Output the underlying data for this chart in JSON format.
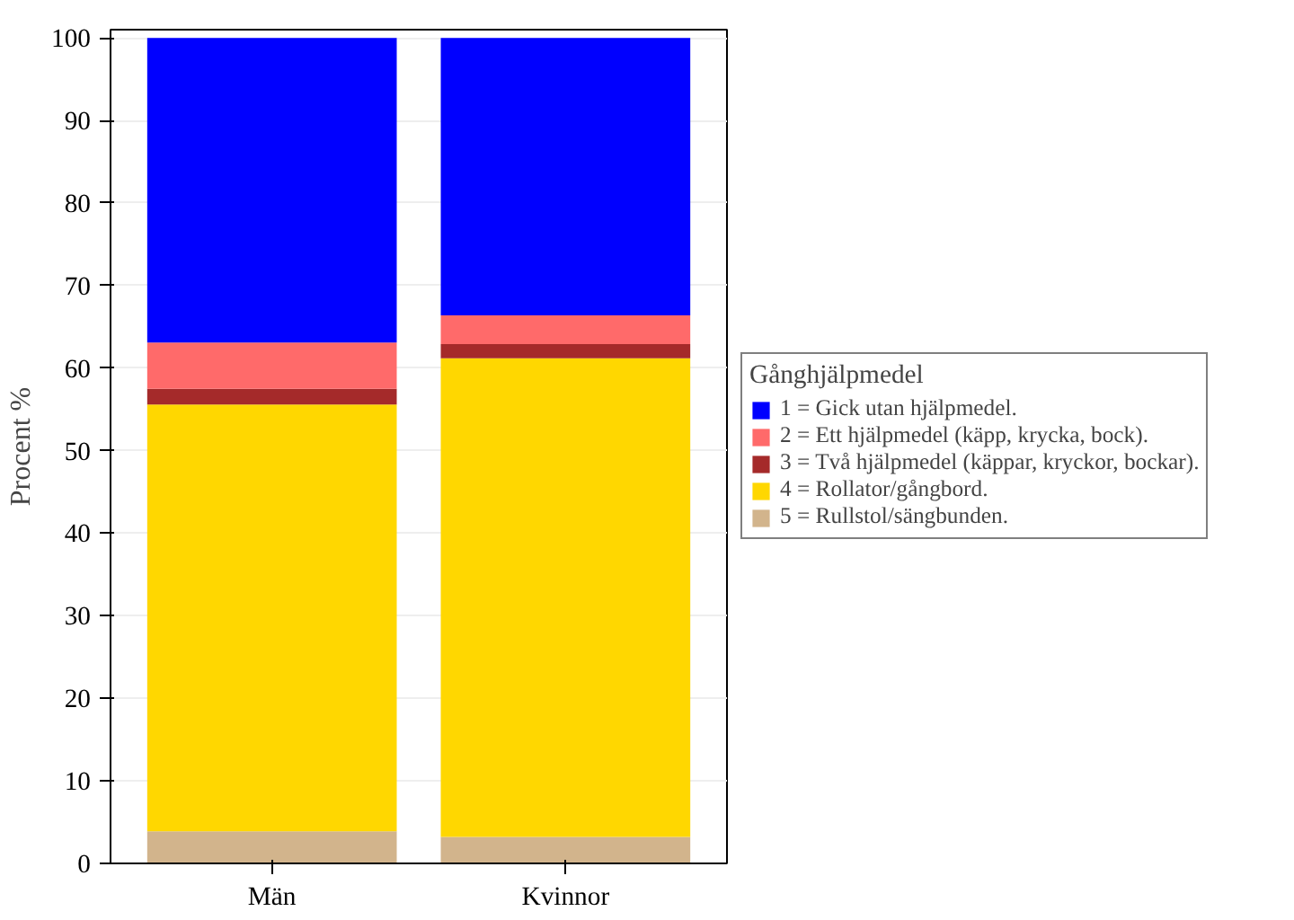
{
  "chart_data": {
    "type": "bar",
    "stacked": true,
    "ylabel": "Procent %",
    "legend_title": "Gånghjälpmedel",
    "legend": "right",
    "categories": [
      "Män",
      "Kvinnor"
    ],
    "series": [
      {
        "name": "5 = Rullstol/sängbunden.",
        "color": "#d2b48c",
        "values": [
          3.9,
          3.2
        ]
      },
      {
        "name": "4 = Rollator/gångbord.",
        "color": "#ffd700",
        "values": [
          51.7,
          58.0
        ]
      },
      {
        "name": "3 = Två hjälpmedel (käppar, kryckor, bockar).",
        "color": "#a52a2a",
        "values": [
          1.9,
          1.7
        ]
      },
      {
        "name": "2 = Ett hjälpmedel (käpp, krycka, bock).",
        "color": "#ff6a6a",
        "values": [
          5.6,
          3.5
        ]
      },
      {
        "name": "1 = Gick utan hjälpmedel.",
        "color": "#0000ff",
        "values": [
          36.9,
          33.6
        ]
      }
    ],
    "ylim": [
      0,
      101
    ],
    "yticks": [
      0,
      10,
      20,
      30,
      40,
      50,
      60,
      70,
      80,
      90,
      100
    ],
    "grid": "y"
  }
}
